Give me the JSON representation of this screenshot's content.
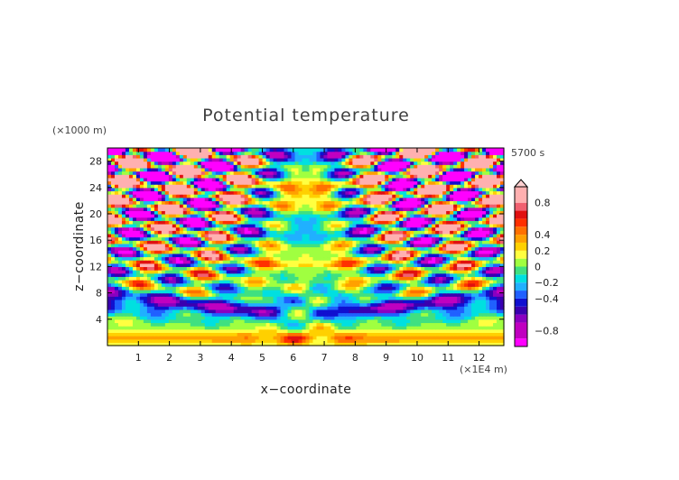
{
  "chart_data": {
    "type": "heatmap",
    "title": "Potential temperature",
    "xlabel": "x−coordinate",
    "ylabel": "z−coordinate",
    "x_unit": "(×1E4 m)",
    "y_unit": "(×1000 m)",
    "time_label": "5700 s",
    "xlim": [
      0,
      12.8
    ],
    "ylim": [
      0,
      30
    ],
    "x_ticks": [
      1,
      2,
      3,
      4,
      5,
      6,
      7,
      8,
      9,
      10,
      11,
      12
    ],
    "y_ticks": [
      4,
      8,
      12,
      16,
      20,
      24,
      28
    ],
    "colorbar": {
      "ticks": [
        0.8,
        0.4,
        0.2,
        0,
        -0.2,
        -0.4,
        -0.8
      ],
      "tick_labels": [
        "0.8",
        "0.4",
        "0.2",
        "0",
        "−0.2",
        "−0.4",
        "−0.8"
      ],
      "levels": [
        -1.0,
        -0.9,
        -0.7,
        -0.6,
        -0.5,
        -0.4,
        -0.3,
        -0.2,
        -0.1,
        0,
        0.1,
        0.2,
        0.3,
        0.4,
        0.5,
        0.6,
        0.7,
        0.8,
        1.0
      ],
      "colors": [
        "#ff00ff",
        "#c000c0",
        "#8a00c0",
        "#3a00b0",
        "#1010d0",
        "#2060ff",
        "#20b0ff",
        "#00e0e0",
        "#40e080",
        "#a0ff40",
        "#ffff40",
        "#ffd000",
        "#ffa000",
        "#ff7000",
        "#ff3000",
        "#e01010",
        "#f06070",
        "#ffb0b0"
      ]
    }
  }
}
